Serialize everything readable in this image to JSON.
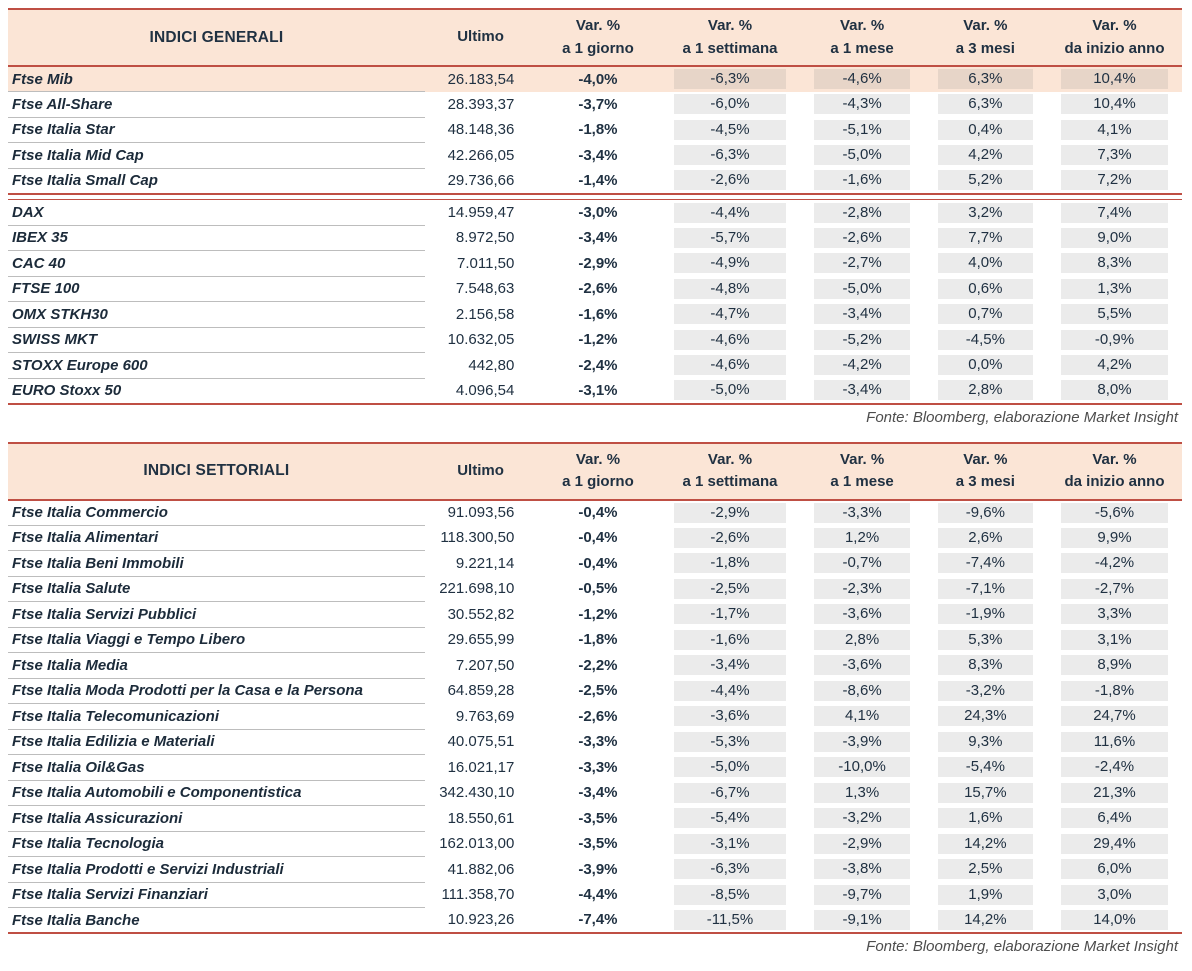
{
  "colors": {
    "accent_red": "#bf4f44",
    "header_bg": "#fbe5d6",
    "highlight_row_bg": "#fbe5d6",
    "cell_box_bg": "#ececec",
    "text_navy": "#203142",
    "source_gray": "#4d4d4d"
  },
  "columns": {
    "ultimo": "Ultimo",
    "var_label": "Var. %",
    "periods": [
      "a 1 giorno",
      "a 1 settimana",
      "a 1 mese",
      "a 3 mesi",
      "da inizio anno"
    ]
  },
  "tables": [
    {
      "title": "INDICI GENERALI",
      "source": "Fonte: Bloomberg, elaborazione Market Insight",
      "highlight_row": 0,
      "groups": [
        {
          "rows": [
            [
              "Ftse Mib",
              "26.183,54",
              "-4,0%",
              "-6,3%",
              "-4,6%",
              "6,3%",
              "10,4%"
            ],
            [
              "Ftse All-Share",
              "28.393,37",
              "-3,7%",
              "-6,0%",
              "-4,3%",
              "6,3%",
              "10,4%"
            ],
            [
              "Ftse Italia Star",
              "48.148,36",
              "-1,8%",
              "-4,5%",
              "-5,1%",
              "0,4%",
              "4,1%"
            ],
            [
              "Ftse Italia Mid Cap",
              "42.266,05",
              "-3,4%",
              "-6,3%",
              "-5,0%",
              "4,2%",
              "7,3%"
            ],
            [
              "Ftse Italia Small Cap",
              "29.736,66",
              "-1,4%",
              "-2,6%",
              "-1,6%",
              "5,2%",
              "7,2%"
            ]
          ]
        },
        {
          "rows": [
            [
              "DAX",
              "14.959,47",
              "-3,0%",
              "-4,4%",
              "-2,8%",
              "3,2%",
              "7,4%"
            ],
            [
              "IBEX 35",
              "8.972,50",
              "-3,4%",
              "-5,7%",
              "-2,6%",
              "7,7%",
              "9,0%"
            ],
            [
              "CAC 40",
              "7.011,50",
              "-2,9%",
              "-4,9%",
              "-2,7%",
              "4,0%",
              "8,3%"
            ],
            [
              "FTSE 100",
              "7.548,63",
              "-2,6%",
              "-4,8%",
              "-5,0%",
              "0,6%",
              "1,3%"
            ],
            [
              "OMX STKH30",
              "2.156,58",
              "-1,6%",
              "-4,7%",
              "-3,4%",
              "0,7%",
              "5,5%"
            ],
            [
              "SWISS MKT",
              "10.632,05",
              "-1,2%",
              "-4,6%",
              "-5,2%",
              "-4,5%",
              "-0,9%"
            ],
            [
              "STOXX Europe 600",
              "442,80",
              "-2,4%",
              "-4,6%",
              "-4,2%",
              "0,0%",
              "4,2%"
            ],
            [
              "EURO Stoxx 50",
              "4.096,54",
              "-3,1%",
              "-5,0%",
              "-3,4%",
              "2,8%",
              "8,0%"
            ]
          ]
        }
      ]
    },
    {
      "title": "INDICI SETTORIALI",
      "source": "Fonte: Bloomberg, elaborazione Market Insight",
      "groups": [
        {
          "rows": [
            [
              "Ftse Italia Commercio",
              "91.093,56",
              "-0,4%",
              "-2,9%",
              "-3,3%",
              "-9,6%",
              "-5,6%"
            ],
            [
              "Ftse Italia Alimentari",
              "118.300,50",
              "-0,4%",
              "-2,6%",
              "1,2%",
              "2,6%",
              "9,9%"
            ],
            [
              "Ftse Italia Beni Immobili",
              "9.221,14",
              "-0,4%",
              "-1,8%",
              "-0,7%",
              "-7,4%",
              "-4,2%"
            ],
            [
              "Ftse Italia Salute",
              "221.698,10",
              "-0,5%",
              "-2,5%",
              "-2,3%",
              "-7,1%",
              "-2,7%"
            ],
            [
              "Ftse Italia Servizi Pubblici",
              "30.552,82",
              "-1,2%",
              "-1,7%",
              "-3,6%",
              "-1,9%",
              "3,3%"
            ],
            [
              "Ftse Italia Viaggi e Tempo Libero",
              "29.655,99",
              "-1,8%",
              "-1,6%",
              "2,8%",
              "5,3%",
              "3,1%"
            ],
            [
              "Ftse Italia Media",
              "7.207,50",
              "-2,2%",
              "-3,4%",
              "-3,6%",
              "8,3%",
              "8,9%"
            ],
            [
              "Ftse Italia Moda Prodotti per la Casa e la Persona",
              "64.859,28",
              "-2,5%",
              "-4,4%",
              "-8,6%",
              "-3,2%",
              "-1,8%"
            ],
            [
              "Ftse Italia Telecomunicazioni",
              "9.763,69",
              "-2,6%",
              "-3,6%",
              "4,1%",
              "24,3%",
              "24,7%"
            ],
            [
              "Ftse Italia Edilizia e Materiali",
              "40.075,51",
              "-3,3%",
              "-5,3%",
              "-3,9%",
              "9,3%",
              "11,6%"
            ],
            [
              "Ftse Italia Oil&Gas",
              "16.021,17",
              "-3,3%",
              "-5,0%",
              "-10,0%",
              "-5,4%",
              "-2,4%"
            ],
            [
              "Ftse Italia Automobili e Componentistica",
              "342.430,10",
              "-3,4%",
              "-6,7%",
              "1,3%",
              "15,7%",
              "21,3%"
            ],
            [
              "Ftse Italia Assicurazioni",
              "18.550,61",
              "-3,5%",
              "-5,4%",
              "-3,2%",
              "1,6%",
              "6,4%"
            ],
            [
              "Ftse Italia Tecnologia",
              "162.013,00",
              "-3,5%",
              "-3,1%",
              "-2,9%",
              "14,2%",
              "29,4%"
            ],
            [
              "Ftse Italia Prodotti e Servizi Industriali",
              "41.882,06",
              "-3,9%",
              "-6,3%",
              "-3,8%",
              "2,5%",
              "6,0%"
            ],
            [
              "Ftse Italia Servizi Finanziari",
              "111.358,70",
              "-4,4%",
              "-8,5%",
              "-9,7%",
              "1,9%",
              "3,0%"
            ],
            [
              "Ftse Italia Banche",
              "10.923,26",
              "-7,4%",
              "-11,5%",
              "-9,1%",
              "14,2%",
              "14,0%"
            ]
          ]
        }
      ]
    }
  ]
}
